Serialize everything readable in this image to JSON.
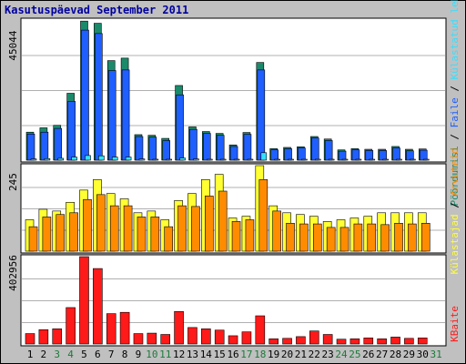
{
  "title": "Kasutuspäevad September 2011",
  "colors": {
    "background": "#c0c0c0",
    "panel": "#ffffff",
    "grid": "#b0b0b0",
    "title": "#0000a0",
    "visits": "#1b8a6b",
    "pages": "#1f5fff",
    "files": "#1f5fff",
    "hits": "#33e0ff",
    "host": "#ffff33",
    "bandwidth_orange": "#ff8c00",
    "bandwidth": "#ff1a1a",
    "weekday": "#000000",
    "weekend": "#1b7a3a"
  },
  "chart_data": [
    {
      "type": "bar",
      "panel": "top",
      "ymax_label": "45044",
      "ylim": [
        0,
        45044
      ],
      "legend_right": [
        {
          "text": "Pöördumisi",
          "color": "#1b8a6b"
        },
        {
          "text": " / ",
          "color": "#000000"
        },
        {
          "text": "Faile",
          "color": "#1f5fff"
        },
        {
          "text": " / ",
          "color": "#000000"
        },
        {
          "text": "Külastatud lehti",
          "color": "#33e0ff"
        }
      ],
      "categories": [
        "1",
        "2",
        "3",
        "4",
        "5",
        "6",
        "7",
        "8",
        "9",
        "10",
        "11",
        "12",
        "13",
        "14",
        "15",
        "16",
        "17",
        "18",
        "19",
        "20",
        "21",
        "22",
        "23",
        "24",
        "25",
        "26",
        "27",
        "28",
        "29",
        "30",
        "31"
      ],
      "series": [
        {
          "name": "Pöördumisi",
          "color": "#1b8a6b",
          "values": [
            9000,
            10400,
            11200,
            21500,
            44700,
            44000,
            32000,
            32800,
            8200,
            8000,
            7000,
            24000,
            10700,
            9200,
            8600,
            4900,
            8900,
            31400,
            3700,
            4100,
            4300,
            7600,
            6800,
            3300,
            3700,
            3500,
            3500,
            4400,
            3500,
            3600,
            0
          ]
        },
        {
          "name": "Faile",
          "color": "#1f5fff",
          "values": [
            8400,
            9000,
            10200,
            18900,
            41800,
            40700,
            28800,
            29000,
            7600,
            7400,
            6300,
            21000,
            9900,
            8600,
            8000,
            4400,
            8300,
            29000,
            3300,
            3700,
            3900,
            7100,
            6300,
            2900,
            3300,
            3100,
            3100,
            3900,
            3000,
            3200,
            0
          ]
        },
        {
          "name": "Külastatud lehti",
          "color": "#33e0ff",
          "values": [
            400,
            500,
            600,
            1000,
            1500,
            1400,
            1000,
            1000,
            400,
            300,
            300,
            700,
            400,
            300,
            300,
            200,
            300,
            2400,
            200,
            200,
            200,
            300,
            300,
            100,
            200,
            100,
            100,
            200,
            100,
            100,
            0
          ]
        }
      ]
    },
    {
      "type": "bar",
      "panel": "middle",
      "ymax_label": "245",
      "ylim": [
        0,
        245
      ],
      "legend_right": [
        {
          "text": "Külastajad",
          "color": "#ffff33"
        },
        {
          "text": " / ",
          "color": "#000000"
        },
        {
          "text": "Arvuteid",
          "color": "#ff8c00"
        }
      ],
      "categories": [
        "1",
        "2",
        "3",
        "4",
        "5",
        "6",
        "7",
        "8",
        "9",
        "10",
        "11",
        "12",
        "13",
        "14",
        "15",
        "16",
        "17",
        "18",
        "19",
        "20",
        "21",
        "22",
        "23",
        "24",
        "25",
        "26",
        "27",
        "28",
        "29",
        "30",
        "31"
      ],
      "series": [
        {
          "name": "Külastajad",
          "color": "#ffff33",
          "values": [
            90,
            120,
            115,
            140,
            175,
            205,
            165,
            150,
            110,
            115,
            90,
            145,
            165,
            205,
            220,
            95,
            100,
            245,
            130,
            110,
            105,
            100,
            85,
            90,
            95,
            100,
            110,
            110,
            110,
            110,
            0
          ]
        },
        {
          "name": "Arvuteid",
          "color": "#ff8c00",
          "values": [
            70,
            98,
            105,
            110,
            148,
            162,
            130,
            130,
            98,
            98,
            70,
            130,
            128,
            158,
            172,
            85,
            90,
            205,
            115,
            80,
            78,
            78,
            68,
            68,
            78,
            78,
            76,
            80,
            78,
            80,
            0
          ]
        }
      ]
    },
    {
      "type": "bar",
      "panel": "bottom",
      "ymax_label": "402956",
      "ylim": [
        0,
        402956
      ],
      "legend_right": [
        {
          "text": "KBaite",
          "color": "#ff1a1a"
        }
      ],
      "categories": [
        "1",
        "2",
        "3",
        "4",
        "5",
        "6",
        "7",
        "8",
        "9",
        "10",
        "11",
        "12",
        "13",
        "14",
        "15",
        "16",
        "17",
        "18",
        "19",
        "20",
        "21",
        "22",
        "23",
        "24",
        "25",
        "26",
        "27",
        "28",
        "29",
        "30",
        "31"
      ],
      "series": [
        {
          "name": "KBaite",
          "color": "#ff1a1a",
          "values": [
            48000,
            66000,
            70000,
            168000,
            402956,
            348000,
            140000,
            146000,
            48000,
            50000,
            44000,
            150000,
            76000,
            70000,
            64000,
            38000,
            56000,
            130000,
            24000,
            26000,
            34000,
            60000,
            44000,
            22000,
            24000,
            28000,
            24000,
            32000,
            26000,
            28000,
            0
          ]
        }
      ]
    }
  ],
  "x_axis": {
    "labels": [
      "1",
      "2",
      "3",
      "4",
      "5",
      "6",
      "7",
      "8",
      "9",
      "10",
      "11",
      "12",
      "13",
      "14",
      "15",
      "16",
      "17",
      "18",
      "19",
      "20",
      "21",
      "22",
      "23",
      "24",
      "25",
      "26",
      "27",
      "28",
      "29",
      "30",
      "31"
    ],
    "weekend": [
      false,
      false,
      true,
      true,
      false,
      false,
      false,
      false,
      false,
      true,
      true,
      false,
      false,
      false,
      false,
      false,
      true,
      true,
      false,
      false,
      false,
      false,
      false,
      true,
      true,
      false,
      false,
      false,
      false,
      false,
      true
    ]
  }
}
